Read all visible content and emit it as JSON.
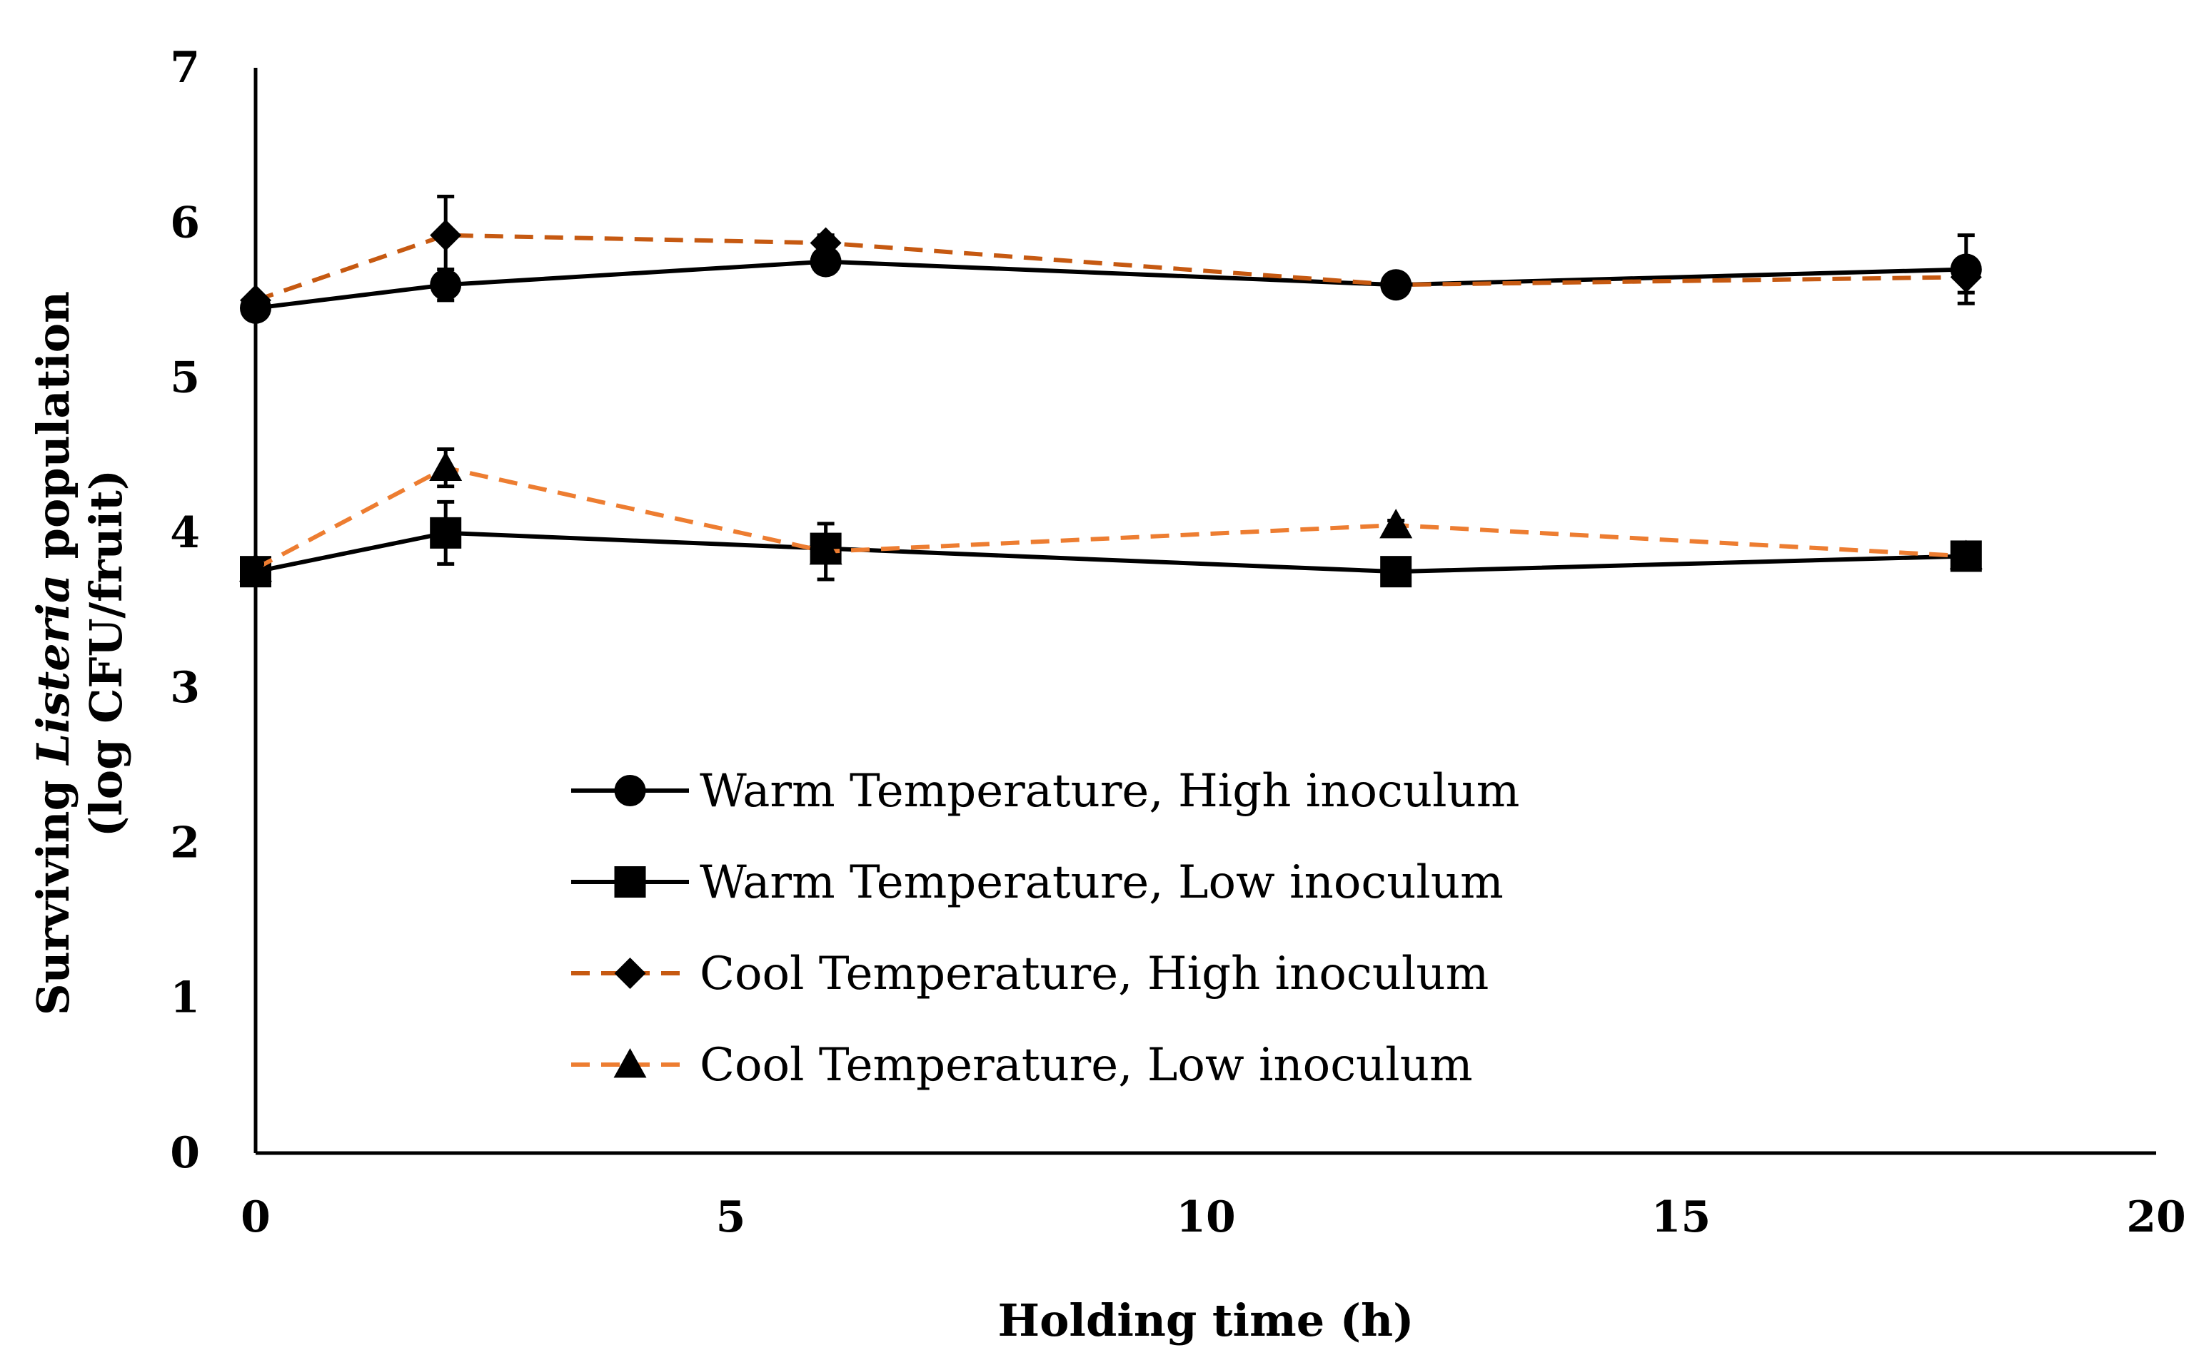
{
  "chart_data": {
    "type": "line",
    "title": "",
    "xlabel": "Holding time (h)",
    "ylabel": {
      "prefix": "Surviving ",
      "italic": "Listeria",
      "suffix": " population",
      "line2": "(log CFU/fruit)"
    },
    "xlim": [
      0,
      20
    ],
    "ylim": [
      0,
      7
    ],
    "xticks": [
      0,
      5,
      10,
      15,
      20
    ],
    "yticks": [
      0,
      1,
      2,
      3,
      4,
      5,
      6,
      7
    ],
    "grid": false,
    "legend_position": "center-left",
    "series": [
      {
        "name": "Warm Temperature, High inoculum",
        "color": "#000000",
        "line_style": "solid",
        "marker": "circle",
        "x": [
          0,
          2,
          6,
          12,
          18
        ],
        "y": [
          5.45,
          5.6,
          5.75,
          5.6,
          5.7
        ],
        "error": [
          0.05,
          0.1,
          0.05,
          0.05,
          0.22
        ]
      },
      {
        "name": "Warm Temperature, Low inoculum",
        "color": "#000000",
        "line_style": "solid",
        "marker": "square",
        "x": [
          0,
          2,
          6,
          12,
          18
        ],
        "y": [
          3.75,
          4.0,
          3.9,
          3.75,
          3.85
        ],
        "error": [
          0.08,
          0.2,
          0.08,
          0.05,
          0.05
        ]
      },
      {
        "name": "Cool Temperature, High inoculum",
        "color": "#C65911",
        "line_style": "dashed",
        "marker": "diamond",
        "x": [
          0,
          2,
          6,
          12,
          18
        ],
        "y": [
          5.5,
          5.92,
          5.87,
          5.6,
          5.65
        ],
        "error": [
          0.03,
          0.25,
          0.05,
          0.03,
          0.1
        ]
      },
      {
        "name": "Cool Temperature, Low inoculum",
        "color": "#ED7D31",
        "line_style": "dashed",
        "marker": "triangle",
        "x": [
          0,
          2,
          6,
          12,
          18
        ],
        "y": [
          3.77,
          4.42,
          3.88,
          4.05,
          3.85
        ],
        "error": [
          0.03,
          0.12,
          0.18,
          0.03,
          0.03
        ]
      }
    ]
  }
}
